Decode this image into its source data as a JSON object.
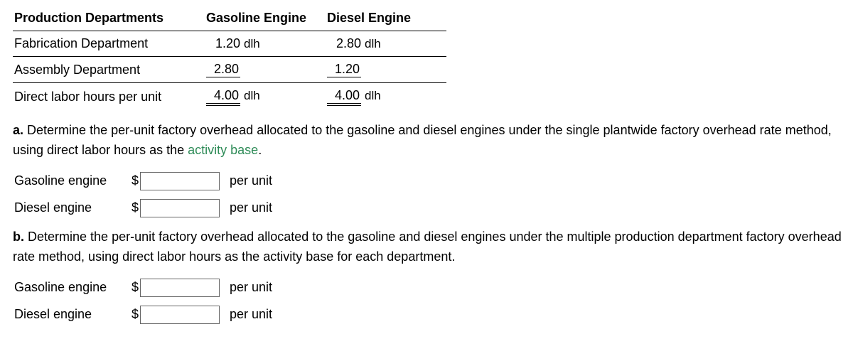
{
  "table": {
    "headers": [
      "Production Departments",
      "Gasoline Engine",
      "Diesel Engine"
    ],
    "rows": [
      {
        "label": "Fabrication Department",
        "gas": "1.20",
        "gas_unit": "dlh",
        "diesel": "2.80",
        "diesel_unit": "dlh",
        "underline": "single"
      },
      {
        "label": "Assembly Department",
        "gas": "2.80",
        "gas_unit": "",
        "diesel": "1.20",
        "diesel_unit": "",
        "underline": "single"
      },
      {
        "label": "Direct labor hours per unit",
        "gas": "4.00",
        "gas_unit": "dlh",
        "diesel": "4.00",
        "diesel_unit": "dlh",
        "underline": "double"
      }
    ]
  },
  "questions": {
    "a": {
      "label": "a.",
      "text_before_link": "Determine the per-unit factory overhead allocated to the gasoline and diesel engines under the single plantwide factory overhead rate method, using direct labor hours as the ",
      "link_text": "activity base",
      "text_after_link": "."
    },
    "b": {
      "label": "b.",
      "text": "Determine the per-unit factory overhead allocated to the gasoline and diesel engines under the multiple production department factory overhead rate method, using direct labor hours as the activity base for each department."
    }
  },
  "inputs": {
    "currency": "$",
    "per_unit": "per unit",
    "gasoline_label": "Gasoline engine",
    "diesel_label": "Diesel engine"
  }
}
